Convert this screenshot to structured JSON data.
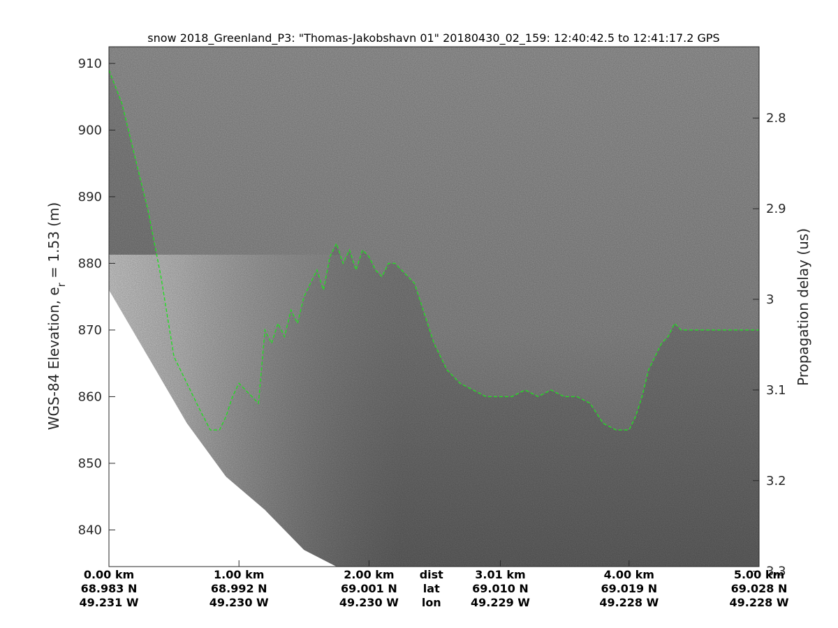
{
  "chart_data": {
    "type": "heatmap",
    "title": "snow 2018_Greenland_P3: \"Thomas-Jakobshavn 01\"  20180430_02_159: 12:40:42.5 to 12:41:17.2 GPS",
    "ylabel": {
      "main": "WGS-84 Elevation, e",
      "sub": "r",
      "rest": " = 1.53 (m)"
    },
    "ylabel_right": "Propagation delay (us)",
    "xlim": [
      0,
      5.0
    ],
    "ylim": [
      834.5,
      912.5
    ],
    "y_ticks": [
      840,
      850,
      860,
      870,
      880,
      890,
      900,
      910
    ],
    "y_ticks_right": {
      "labels": [
        "2.8",
        "2.9",
        "3",
        "3.1",
        "3.2",
        "3.3"
      ],
      "elevations": [
        901.8,
        888.2,
        874.6,
        861.0,
        847.4,
        833.8
      ]
    },
    "x_ticks": [
      {
        "x": 0.0,
        "dist": "0.00 km",
        "lat": "68.983 N",
        "lon": "49.231 W"
      },
      {
        "x": 1.0,
        "dist": "1.00 km",
        "lat": "68.992 N",
        "lon": "49.230 W"
      },
      {
        "x": 2.0,
        "dist": "2.00 km",
        "lat": "69.001 N",
        "lon": "49.230 W"
      },
      {
        "x": 3.01,
        "dist": "3.01 km",
        "lat": "69.010 N",
        "lon": "49.229 W"
      },
      {
        "x": 4.0,
        "dist": "4.00 km",
        "lat": "69.019 N",
        "lon": "49.228 W"
      },
      {
        "x": 5.0,
        "dist": "5.00 km",
        "lat": "69.028 N",
        "lon": "49.228 W"
      }
    ],
    "row_labels": {
      "x": 2.48,
      "dist": "dist",
      "lat": "lat",
      "lon": "lon"
    },
    "surface_series": {
      "name": "",
      "color": "#22dd22",
      "x": [
        0.0,
        0.1,
        0.2,
        0.3,
        0.4,
        0.5,
        0.6,
        0.7,
        0.78,
        0.85,
        0.9,
        0.95,
        1.0,
        1.05,
        1.1,
        1.15,
        1.2,
        1.25,
        1.3,
        1.35,
        1.4,
        1.45,
        1.5,
        1.55,
        1.6,
        1.65,
        1.7,
        1.75,
        1.8,
        1.85,
        1.9,
        1.95,
        2.0,
        2.05,
        2.1,
        2.15,
        2.2,
        2.25,
        2.3,
        2.35,
        2.4,
        2.45,
        2.5,
        2.55,
        2.6,
        2.7,
        2.8,
        2.9,
        3.0,
        3.1,
        3.2,
        3.3,
        3.4,
        3.5,
        3.6,
        3.7,
        3.8,
        3.9,
        4.0,
        4.05,
        4.1,
        4.15,
        4.2,
        4.25,
        4.3,
        4.35,
        4.4,
        4.5,
        4.6,
        4.65,
        4.7,
        4.75,
        4.8,
        4.85,
        4.9,
        4.95,
        5.0
      ],
      "y": [
        909,
        904,
        896,
        888,
        878,
        866,
        862,
        858,
        855,
        855,
        857,
        860,
        862,
        861,
        860,
        859,
        870,
        868,
        871,
        869,
        873,
        871,
        875,
        877,
        879,
        876,
        881,
        883,
        880,
        882,
        879,
        882,
        881,
        879,
        878,
        880,
        880,
        879,
        878,
        877,
        874,
        871,
        868,
        866,
        864,
        862,
        861,
        860,
        860,
        860,
        861,
        860,
        861,
        860,
        860,
        859,
        856,
        855,
        855,
        857,
        860,
        864,
        866,
        868,
        869,
        871,
        870,
        870,
        870,
        870,
        870,
        870,
        870,
        870,
        870,
        870,
        870
      ],
      "style": "dashed"
    },
    "bottom_edge": {
      "x": [
        0.0,
        0.3,
        0.6,
        0.9,
        1.2,
        1.5,
        1.75
      ],
      "y": [
        876,
        866,
        856,
        848,
        843,
        837,
        834.5
      ]
    },
    "colors": {
      "background_top": "#9a9a9a",
      "background_mid": "#8a8a8a",
      "background_bottom": "#6d6d6d",
      "shallow_light": "#d8d8d8"
    }
  }
}
